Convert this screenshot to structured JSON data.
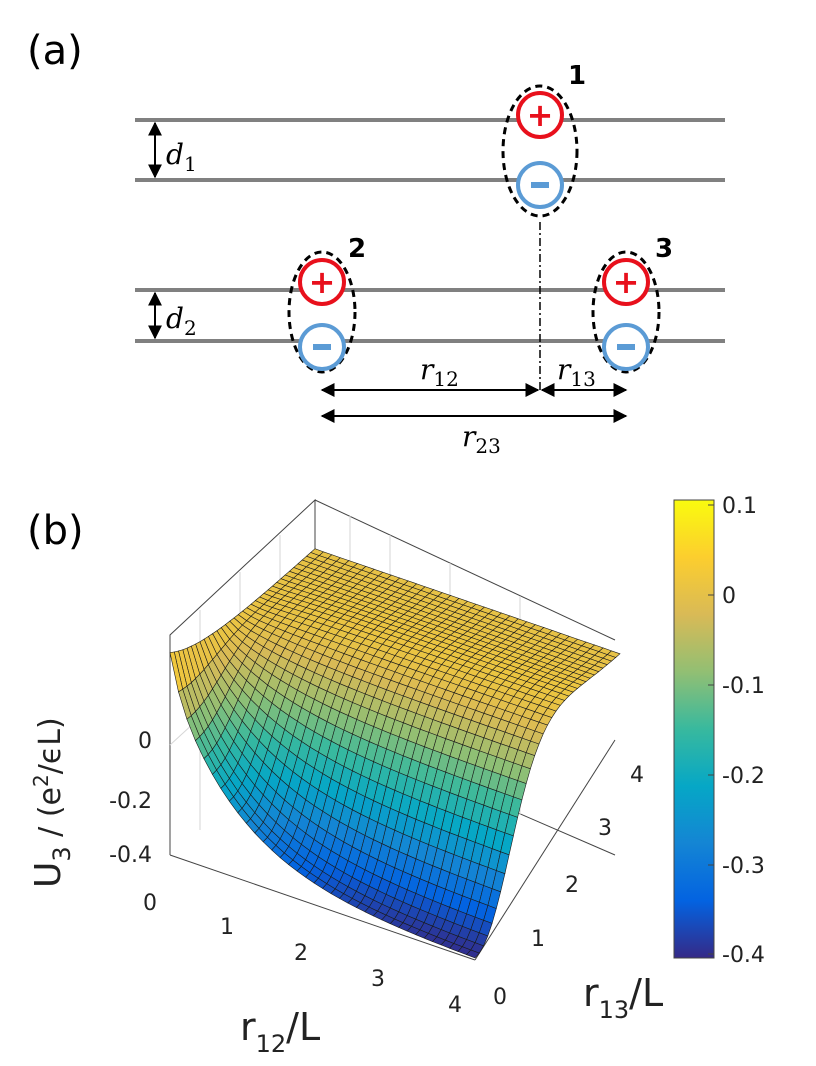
{
  "panel_a": {
    "label": "(a)",
    "dipole_1": "1",
    "dipole_2": "2",
    "dipole_3": "3",
    "plus_sign": "+",
    "minus_sign": "-",
    "d1": {
      "sym": "d",
      "sub": "1"
    },
    "d2": {
      "sym": "d",
      "sub": "2"
    },
    "r12": {
      "sym": "r",
      "sub": "12"
    },
    "r13": {
      "sym": "r",
      "sub": "13"
    },
    "r23": {
      "sym": "r",
      "sub": "23"
    },
    "colors": {
      "plus": "#e8101c",
      "minus": "#5b9bd5",
      "layer": "#808080"
    }
  },
  "panel_b": {
    "label": "(b)",
    "z_axis": {
      "main": "U",
      "sub": "3",
      "mid": " / (e",
      "sup": "2",
      "eps": "/ϵL)"
    },
    "x_axis": {
      "main": "r",
      "sub": "12",
      "unit": "/L"
    },
    "y_axis": {
      "main": "r",
      "sub": "13",
      "unit": "/L"
    },
    "z_ticks": [
      "0",
      "-0.2",
      "-0.4"
    ],
    "x_ticks": [
      "0",
      "1",
      "2",
      "3",
      "4"
    ],
    "y_ticks": [
      "0",
      "1",
      "2",
      "3",
      "4"
    ],
    "colorbar_ticks": [
      "0.1",
      "0",
      "-0.1",
      "-0.2",
      "-0.3",
      "-0.4"
    ],
    "colormap": [
      "#352a87",
      "#0363e1",
      "#1485d4",
      "#06a7c6",
      "#38b99e",
      "#92bf73",
      "#d9ba56",
      "#fcce2e",
      "#f9fb0e"
    ]
  },
  "chart_data": {
    "type": "surface",
    "x_label": "r12/L",
    "y_label": "r13/L",
    "z_label": "U3 / (e^2/ϵL)",
    "xlim": [
      0,
      4
    ],
    "ylim": [
      0,
      4
    ],
    "zlim": [
      -0.4,
      0.1
    ],
    "colorbar_range": [
      -0.4,
      0.1
    ],
    "sample_points": [
      {
        "x": 0,
        "y": 0,
        "z": 0.06
      },
      {
        "x": 4,
        "y": 0,
        "z": -0.4
      },
      {
        "x": 0,
        "y": 4,
        "z": 0.0
      },
      {
        "x": 4,
        "y": 4,
        "z": 0.0
      },
      {
        "x": 1,
        "y": 0,
        "z": -0.3
      },
      {
        "x": 2,
        "y": 1,
        "z": -0.25
      },
      {
        "x": 2,
        "y": 3,
        "z": 0.0
      }
    ]
  }
}
